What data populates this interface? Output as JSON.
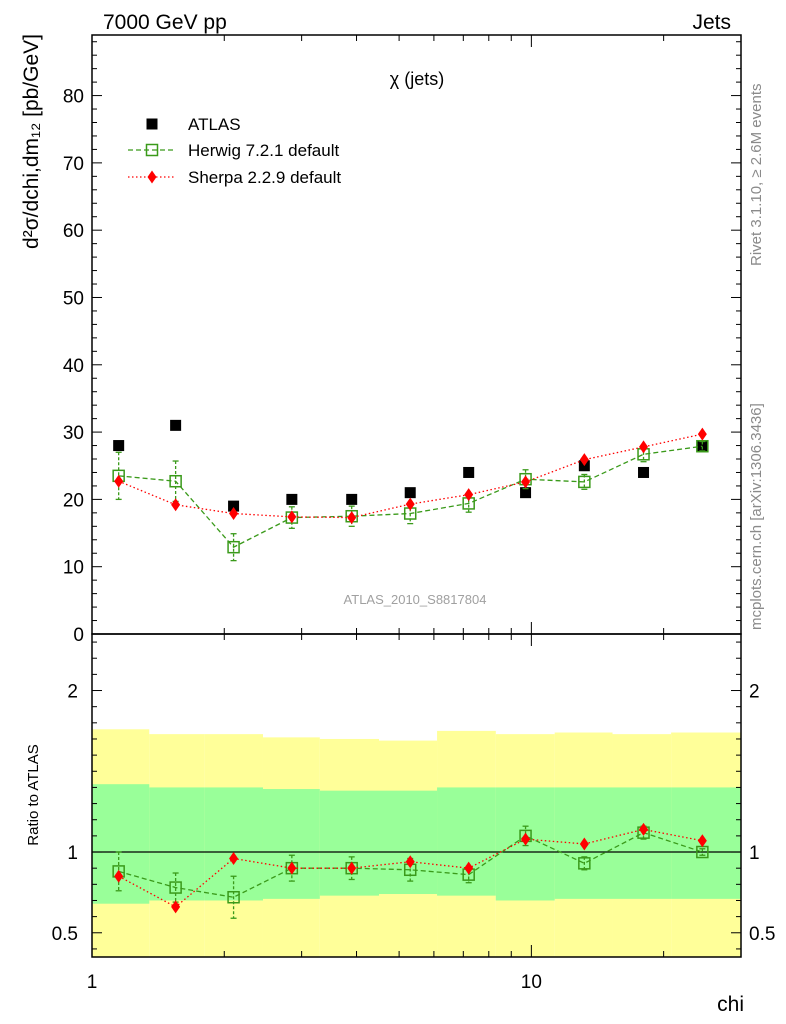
{
  "header": {
    "left": "7000 GeV pp",
    "right": "Jets"
  },
  "side_labels": {
    "rivet": "Rivet 3.1.10, ≥ 2.6M events",
    "mcplots": "mcplots.cern.ch [arXiv:1306.3436]"
  },
  "chart_data": [
    {
      "type": "scatter",
      "panel": "main",
      "title": "χ (jets)",
      "watermark": "ATLAS_2010_S8817804",
      "xlabel": "chi",
      "ylabel": "d²σ/dchi,dm₁₂ [pb/GeV]",
      "xscale": "log",
      "xlim": [
        1,
        30
      ],
      "ylim": [
        0,
        89
      ],
      "x_ticks": [
        "1",
        "10"
      ],
      "y_ticks": [
        0,
        10,
        20,
        30,
        40,
        50,
        60,
        70,
        80
      ],
      "legend_position": "top-left",
      "x": [
        1.15,
        1.55,
        2.1,
        2.85,
        3.9,
        5.3,
        7.2,
        9.7,
        13.2,
        18.0,
        24.5
      ],
      "series": [
        {
          "name": "ATLAS",
          "color": "#000000",
          "marker": "square",
          "values": [
            28,
            31,
            19,
            20,
            20,
            21,
            24,
            21,
            25,
            24,
            28
          ]
        },
        {
          "name": "Herwig 7.2.1 default",
          "color": "#3a9a1a",
          "marker": "open-square",
          "line": "dashed",
          "values": [
            23.5,
            22.7,
            12.9,
            17.3,
            17.5,
            17.9,
            19.4,
            23.0,
            22.6,
            26.7,
            27.9
          ],
          "errors": [
            3.5,
            3.0,
            2.0,
            1.6,
            1.5,
            1.5,
            1.3,
            1.4,
            1.1,
            1.1,
            0.7
          ]
        },
        {
          "name": "Sherpa 2.2.9 default",
          "color": "#ff0000",
          "marker": "diamond",
          "line": "dotted",
          "values": [
            22.7,
            19.2,
            17.9,
            17.4,
            17.3,
            19.3,
            20.7,
            22.6,
            25.9,
            27.8,
            29.7
          ]
        }
      ]
    },
    {
      "type": "scatter",
      "panel": "ratio",
      "ylabel": "Ratio to ATLAS",
      "xlabel": "chi",
      "xscale": "log",
      "xlim": [
        1,
        30
      ],
      "ylim": [
        0.35,
        2.35
      ],
      "y_ticks": [
        "0.5",
        "1",
        "2"
      ],
      "reference_line": 1,
      "bin_edges": [
        1.0,
        1.35,
        1.8,
        2.45,
        3.3,
        4.5,
        6.1,
        8.3,
        11.3,
        15.3,
        20.8,
        30.0
      ],
      "bands": [
        {
          "name": "yellow",
          "color": "#ffff99",
          "low": [
            0.33,
            0.33,
            0.33,
            0.33,
            0.33,
            0.33,
            0.33,
            0.33,
            0.33,
            0.33,
            0.33
          ],
          "high": [
            1.76,
            1.73,
            1.73,
            1.71,
            1.7,
            1.69,
            1.75,
            1.73,
            1.74,
            1.73,
            1.74
          ]
        },
        {
          "name": "green",
          "color": "#99ff99",
          "low": [
            0.68,
            0.7,
            0.7,
            0.71,
            0.73,
            0.74,
            0.73,
            0.7,
            0.71,
            0.71,
            0.71
          ],
          "high": [
            1.42,
            1.4,
            1.4,
            1.39,
            1.38,
            1.38,
            1.4,
            1.4,
            1.4,
            1.4,
            1.4
          ]
        }
      ],
      "x": [
        1.15,
        1.55,
        2.1,
        2.85,
        3.9,
        5.3,
        7.2,
        9.7,
        13.2,
        18.0,
        24.5
      ],
      "series": [
        {
          "name": "Herwig 7.2.1 default",
          "color": "#3a9a1a",
          "marker": "open-square",
          "line": "dashed",
          "values": [
            0.88,
            0.78,
            0.72,
            0.9,
            0.9,
            0.89,
            0.86,
            1.1,
            0.93,
            1.12,
            1.0
          ],
          "errors": [
            0.12,
            0.09,
            0.13,
            0.08,
            0.07,
            0.07,
            0.05,
            0.06,
            0.04,
            0.04,
            0.02
          ]
        },
        {
          "name": "Sherpa 2.2.9 default",
          "color": "#ff0000",
          "marker": "diamond",
          "line": "dotted",
          "values": [
            0.85,
            0.66,
            0.96,
            0.9,
            0.9,
            0.94,
            0.9,
            1.08,
            1.05,
            1.14,
            1.07
          ]
        }
      ]
    }
  ]
}
